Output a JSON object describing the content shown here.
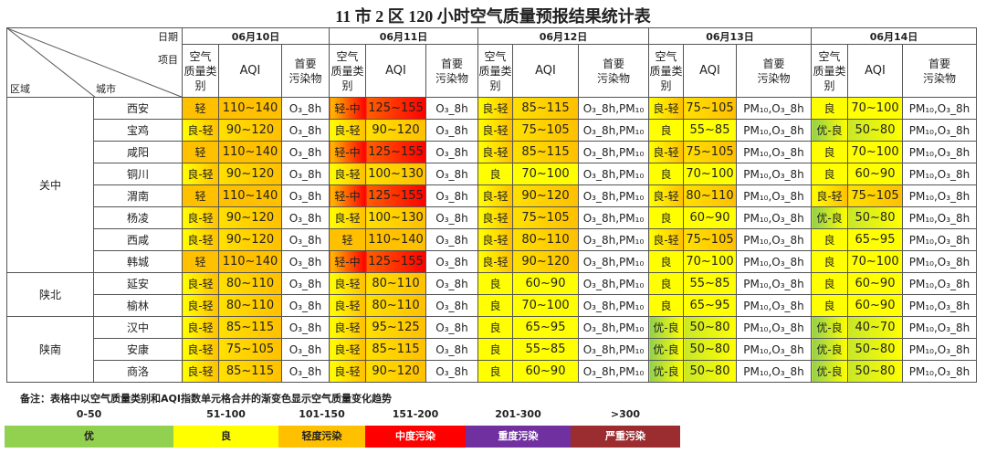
{
  "title": "11 市 2 区 120 小时空气质量预报结果统计表",
  "header": {
    "date_label": "日期",
    "item_label": "项目",
    "region_label": "区域",
    "city_label": "城市",
    "dates": [
      "06月10日",
      "06月11日",
      "06月12日",
      "06月13日",
      "06月14日"
    ],
    "columns": [
      "空气\n质量类\n别",
      "AQI",
      "首要\n污染物"
    ]
  },
  "table": {
    "regions": [
      {
        "name": "关中",
        "cities": [
          {
            "name": "西安",
            "days": [
              [
                "轻",
                "110~140",
                "O₃_8h"
              ],
              [
                "轻-中",
                "125~155",
                "O₃_8h"
              ],
              [
                "良-轻",
                "85~115",
                "O₃_8h,PM₁₀"
              ],
              [
                "良-轻",
                "75~105",
                "PM₁₀,O₃_8h"
              ],
              [
                "良",
                "70~100",
                "PM₁₀,O₃_8h"
              ]
            ]
          },
          {
            "name": "宝鸡",
            "days": [
              [
                "良-轻",
                "90~120",
                "O₃_8h"
              ],
              [
                "良-轻",
                "90~120",
                "O₃_8h"
              ],
              [
                "良-轻",
                "75~105",
                "O₃_8h,PM₁₀"
              ],
              [
                "良",
                "55~85",
                "PM₁₀,O₃_8h"
              ],
              [
                "优-良",
                "50~80",
                "PM₁₀,O₃_8h"
              ]
            ]
          },
          {
            "name": "咸阳",
            "days": [
              [
                "轻",
                "110~140",
                "O₃_8h"
              ],
              [
                "轻-中",
                "125~155",
                "O₃_8h"
              ],
              [
                "良-轻",
                "85~115",
                "O₃_8h,PM₁₀"
              ],
              [
                "良-轻",
                "75~105",
                "PM₁₀,O₃_8h"
              ],
              [
                "良",
                "70~100",
                "PM₁₀,O₃_8h"
              ]
            ]
          },
          {
            "name": "铜川",
            "days": [
              [
                "良-轻",
                "90~120",
                "O₃_8h"
              ],
              [
                "良-轻",
                "100~130",
                "O₃_8h"
              ],
              [
                "良",
                "70~100",
                "O₃_8h,PM₁₀"
              ],
              [
                "良",
                "70~100",
                "PM₁₀,O₃_8h"
              ],
              [
                "良",
                "60~90",
                "PM₁₀,O₃_8h"
              ]
            ]
          },
          {
            "name": "渭南",
            "days": [
              [
                "轻",
                "110~140",
                "O₃_8h"
              ],
              [
                "轻-中",
                "125~155",
                "O₃_8h"
              ],
              [
                "良-轻",
                "90~120",
                "O₃_8h,PM₁₀"
              ],
              [
                "良-轻",
                "80~110",
                "PM₁₀,O₃_8h"
              ],
              [
                "良-轻",
                "75~105",
                "PM₁₀,O₃_8h"
              ]
            ]
          },
          {
            "name": "杨凌",
            "days": [
              [
                "良-轻",
                "90~120",
                "O₃_8h"
              ],
              [
                "良-轻",
                "100~130",
                "O₃_8h"
              ],
              [
                "良-轻",
                "75~105",
                "O₃_8h,PM₁₀"
              ],
              [
                "良",
                "60~90",
                "PM₁₀,O₃_8h"
              ],
              [
                "优-良",
                "50~80",
                "PM₁₀,O₃_8h"
              ]
            ]
          },
          {
            "name": "西咸",
            "days": [
              [
                "良-轻",
                "90~120",
                "O₃_8h"
              ],
              [
                "轻",
                "110~140",
                "O₃_8h"
              ],
              [
                "良-轻",
                "80~110",
                "O₃_8h,PM₁₀"
              ],
              [
                "良-轻",
                "75~105",
                "PM₁₀,O₃_8h"
              ],
              [
                "良",
                "65~95",
                "PM₁₀,O₃_8h"
              ]
            ]
          },
          {
            "name": "韩城",
            "days": [
              [
                "轻",
                "110~140",
                "O₃_8h"
              ],
              [
                "轻-中",
                "125~155",
                "O₃_8h"
              ],
              [
                "良-轻",
                "90~120",
                "O₃_8h,PM₁₀"
              ],
              [
                "良",
                "70~100",
                "PM₁₀,O₃_8h"
              ],
              [
                "良",
                "70~100",
                "PM₁₀,O₃_8h"
              ]
            ]
          }
        ]
      },
      {
        "name": "陕北",
        "cities": [
          {
            "name": "延安",
            "days": [
              [
                "良-轻",
                "80~110",
                "O₃_8h"
              ],
              [
                "良-轻",
                "80~110",
                "O₃_8h"
              ],
              [
                "良",
                "60~90",
                "O₃_8h,PM₁₀"
              ],
              [
                "良",
                "55~85",
                "PM₁₀,O₃_8h"
              ],
              [
                "良",
                "60~90",
                "PM₁₀,O₃_8h"
              ]
            ]
          },
          {
            "name": "榆林",
            "days": [
              [
                "良-轻",
                "80~110",
                "O₃_8h"
              ],
              [
                "良-轻",
                "80~110",
                "O₃_8h"
              ],
              [
                "良",
                "70~100",
                "O₃_8h,PM₁₀"
              ],
              [
                "良",
                "65~95",
                "PM₁₀,O₃_8h"
              ],
              [
                "良",
                "60~90",
                "PM₁₀,O₃_8h"
              ]
            ]
          }
        ]
      },
      {
        "name": "陕南",
        "cities": [
          {
            "name": "汉中",
            "days": [
              [
                "良-轻",
                "85~115",
                "O₃_8h"
              ],
              [
                "良-轻",
                "95~125",
                "O₃_8h"
              ],
              [
                "良",
                "65~95",
                "O₃_8h,PM₁₀"
              ],
              [
                "优-良",
                "50~80",
                "PM₁₀,O₃_8h"
              ],
              [
                "优-良",
                "40~70",
                "PM₁₀,O₃_8h"
              ]
            ]
          },
          {
            "name": "安康",
            "days": [
              [
                "良-轻",
                "75~105",
                "O₃_8h"
              ],
              [
                "良-轻",
                "85~115",
                "O₃_8h"
              ],
              [
                "良",
                "55~85",
                "O₃_8h,PM₁₀"
              ],
              [
                "优-良",
                "50~80",
                "PM₁₀,O₃_8h"
              ],
              [
                "优-良",
                "50~80",
                "PM₁₀,O₃_8h"
              ]
            ]
          },
          {
            "name": "商洛",
            "days": [
              [
                "良-轻",
                "85~115",
                "O₃_8h"
              ],
              [
                "良-轻",
                "90~120",
                "O₃_8h"
              ],
              [
                "良",
                "60~90",
                "O₃_8h,PM₁₀"
              ],
              [
                "优-良",
                "50~80",
                "PM₁₀,O₃_8h"
              ],
              [
                "优-良",
                "50~80",
                "PM₁₀,O₃_8h"
              ]
            ]
          }
        ]
      }
    ]
  },
  "note": "备注：表格中以空气质量类别和AQI指数单元格合并的渐变色显示空气质量变化趋势",
  "legend": {
    "items": [
      {
        "range": "0-50",
        "label": "优",
        "color": "#92d050",
        "text_color": "#222222"
      },
      {
        "range": "51-100",
        "label": "良",
        "color": "#ffff00",
        "text_color": "#222222"
      },
      {
        "range": "101-150",
        "label": "轻度污染",
        "color": "#ffc000",
        "text_color": "#222222"
      },
      {
        "range": "151-200",
        "label": "中度污染",
        "color": "#ff0000",
        "text_color": "#ffffff"
      },
      {
        "range": "201-300",
        "label": "重度污染",
        "color": "#7030a0",
        "text_color": "#ffffff"
      },
      {
        "range": ">300",
        "label": "严重污染",
        "color": "#9b2d30",
        "text_color": "#ffffff"
      }
    ]
  }
}
